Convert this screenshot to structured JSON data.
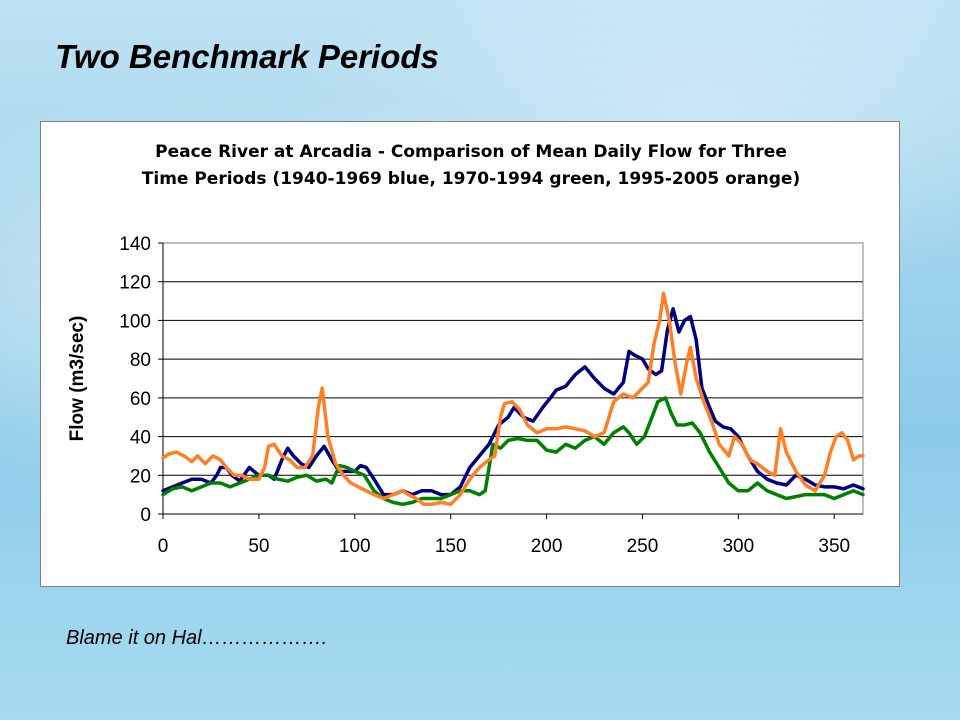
{
  "slide": {
    "title": "Two Benchmark Periods",
    "caption": "Blame it on Hal………………."
  },
  "chart_data": {
    "type": "line",
    "title_lines": [
      "Peace River at Arcadia - Comparison of Mean Daily Flow for Three",
      "Time Periods (1940-1969 blue, 1970-1994 green, 1995-2005 orange)"
    ],
    "xlabel": "",
    "ylabel": "Flow (m3/sec)",
    "xlim": [
      0,
      365
    ],
    "ylim": [
      0,
      140
    ],
    "x_ticks": [
      0,
      50,
      100,
      150,
      200,
      250,
      300,
      350
    ],
    "y_ticks": [
      0,
      20,
      40,
      60,
      80,
      100,
      120,
      140
    ],
    "grid": "horizontal",
    "legend": "none",
    "series": [
      {
        "color": "#000080",
        "points": [
          [
            0,
            12
          ],
          [
            5,
            14
          ],
          [
            10,
            16
          ],
          [
            15,
            18
          ],
          [
            20,
            18
          ],
          [
            25,
            16
          ],
          [
            28,
            20
          ],
          [
            30,
            24
          ],
          [
            33,
            24
          ],
          [
            36,
            20
          ],
          [
            40,
            17
          ],
          [
            45,
            24
          ],
          [
            50,
            20
          ],
          [
            55,
            20
          ],
          [
            58,
            18
          ],
          [
            62,
            28
          ],
          [
            65,
            34
          ],
          [
            68,
            30
          ],
          [
            72,
            26
          ],
          [
            76,
            24
          ],
          [
            80,
            30
          ],
          [
            84,
            35
          ],
          [
            88,
            28
          ],
          [
            92,
            22
          ],
          [
            96,
            22
          ],
          [
            100,
            22
          ],
          [
            103,
            25
          ],
          [
            106,
            24
          ],
          [
            110,
            18
          ],
          [
            115,
            10
          ],
          [
            120,
            10
          ],
          [
            125,
            12
          ],
          [
            130,
            10
          ],
          [
            135,
            12
          ],
          [
            140,
            12
          ],
          [
            145,
            10
          ],
          [
            150,
            10
          ],
          [
            155,
            14
          ],
          [
            160,
            24
          ],
          [
            165,
            30
          ],
          [
            170,
            36
          ],
          [
            175,
            46
          ],
          [
            180,
            50
          ],
          [
            183,
            55
          ],
          [
            188,
            50
          ],
          [
            193,
            48
          ],
          [
            198,
            55
          ],
          [
            202,
            60
          ],
          [
            205,
            64
          ],
          [
            210,
            66
          ],
          [
            215,
            72
          ],
          [
            220,
            76
          ],
          [
            225,
            70
          ],
          [
            230,
            65
          ],
          [
            235,
            62
          ],
          [
            240,
            68
          ],
          [
            243,
            84
          ],
          [
            246,
            82
          ],
          [
            250,
            80
          ],
          [
            253,
            75
          ],
          [
            257,
            72
          ],
          [
            260,
            74
          ],
          [
            263,
            95
          ],
          [
            266,
            106
          ],
          [
            269,
            94
          ],
          [
            272,
            100
          ],
          [
            275,
            102
          ],
          [
            278,
            90
          ],
          [
            281,
            65
          ],
          [
            285,
            55
          ],
          [
            288,
            48
          ],
          [
            292,
            45
          ],
          [
            296,
            44
          ],
          [
            300,
            40
          ],
          [
            305,
            30
          ],
          [
            310,
            22
          ],
          [
            315,
            18
          ],
          [
            320,
            16
          ],
          [
            325,
            15
          ],
          [
            330,
            20
          ],
          [
            335,
            18
          ],
          [
            340,
            15
          ],
          [
            345,
            14
          ],
          [
            350,
            14
          ],
          [
            355,
            13
          ],
          [
            360,
            15
          ],
          [
            365,
            13
          ]
        ]
      },
      {
        "color": "#008000",
        "points": [
          [
            0,
            10
          ],
          [
            5,
            13
          ],
          [
            10,
            14
          ],
          [
            15,
            12
          ],
          [
            20,
            14
          ],
          [
            25,
            16
          ],
          [
            30,
            16
          ],
          [
            35,
            14
          ],
          [
            40,
            16
          ],
          [
            45,
            18
          ],
          [
            50,
            20
          ],
          [
            55,
            20
          ],
          [
            60,
            18
          ],
          [
            65,
            17
          ],
          [
            70,
            19
          ],
          [
            75,
            20
          ],
          [
            80,
            17
          ],
          [
            85,
            18
          ],
          [
            88,
            16
          ],
          [
            92,
            25
          ],
          [
            96,
            24
          ],
          [
            100,
            22
          ],
          [
            105,
            20
          ],
          [
            110,
            12
          ],
          [
            115,
            8
          ],
          [
            120,
            6
          ],
          [
            125,
            5
          ],
          [
            130,
            6
          ],
          [
            135,
            8
          ],
          [
            140,
            8
          ],
          [
            145,
            8
          ],
          [
            150,
            10
          ],
          [
            155,
            12
          ],
          [
            160,
            12
          ],
          [
            165,
            10
          ],
          [
            168,
            12
          ],
          [
            172,
            36
          ],
          [
            176,
            34
          ],
          [
            180,
            38
          ],
          [
            185,
            39
          ],
          [
            190,
            38
          ],
          [
            195,
            38
          ],
          [
            200,
            33
          ],
          [
            205,
            32
          ],
          [
            210,
            36
          ],
          [
            215,
            34
          ],
          [
            220,
            38
          ],
          [
            225,
            40
          ],
          [
            230,
            36
          ],
          [
            235,
            42
          ],
          [
            240,
            45
          ],
          [
            243,
            42
          ],
          [
            247,
            36
          ],
          [
            251,
            40
          ],
          [
            255,
            50
          ],
          [
            258,
            58
          ],
          [
            262,
            60
          ],
          [
            265,
            52
          ],
          [
            268,
            46
          ],
          [
            272,
            46
          ],
          [
            276,
            47
          ],
          [
            280,
            42
          ],
          [
            285,
            32
          ],
          [
            290,
            24
          ],
          [
            295,
            16
          ],
          [
            300,
            12
          ],
          [
            305,
            12
          ],
          [
            310,
            16
          ],
          [
            315,
            12
          ],
          [
            320,
            10
          ],
          [
            325,
            8
          ],
          [
            330,
            9
          ],
          [
            335,
            10
          ],
          [
            340,
            10
          ],
          [
            345,
            10
          ],
          [
            350,
            8
          ],
          [
            355,
            10
          ],
          [
            360,
            12
          ],
          [
            365,
            10
          ]
        ]
      },
      {
        "color": "#ff7f27",
        "points": [
          [
            0,
            29
          ],
          [
            3,
            31
          ],
          [
            7,
            32
          ],
          [
            11,
            30
          ],
          [
            15,
            27
          ],
          [
            18,
            30
          ],
          [
            22,
            26
          ],
          [
            26,
            30
          ],
          [
            30,
            28
          ],
          [
            33,
            24
          ],
          [
            37,
            20
          ],
          [
            41,
            20
          ],
          [
            45,
            18
          ],
          [
            50,
            18
          ],
          [
            53,
            24
          ],
          [
            55,
            35
          ],
          [
            58,
            36
          ],
          [
            62,
            30
          ],
          [
            66,
            28
          ],
          [
            70,
            24
          ],
          [
            74,
            24
          ],
          [
            78,
            30
          ],
          [
            81,
            55
          ],
          [
            83,
            65
          ],
          [
            86,
            40
          ],
          [
            90,
            26
          ],
          [
            94,
            20
          ],
          [
            98,
            16
          ],
          [
            102,
            14
          ],
          [
            106,
            12
          ],
          [
            110,
            10
          ],
          [
            115,
            8
          ],
          [
            120,
            10
          ],
          [
            125,
            12
          ],
          [
            128,
            10
          ],
          [
            132,
            8
          ],
          [
            136,
            5
          ],
          [
            140,
            5
          ],
          [
            145,
            6
          ],
          [
            150,
            5
          ],
          [
            155,
            10
          ],
          [
            160,
            18
          ],
          [
            165,
            24
          ],
          [
            170,
            28
          ],
          [
            173,
            30
          ],
          [
            176,
            50
          ],
          [
            178,
            57
          ],
          [
            182,
            58
          ],
          [
            186,
            54
          ],
          [
            190,
            46
          ],
          [
            195,
            42
          ],
          [
            200,
            44
          ],
          [
            205,
            44
          ],
          [
            210,
            45
          ],
          [
            215,
            44
          ],
          [
            220,
            43
          ],
          [
            225,
            40
          ],
          [
            230,
            42
          ],
          [
            235,
            58
          ],
          [
            240,
            62
          ],
          [
            245,
            60
          ],
          [
            249,
            64
          ],
          [
            253,
            68
          ],
          [
            256,
            88
          ],
          [
            259,
            100
          ],
          [
            261,
            114
          ],
          [
            264,
            100
          ],
          [
            267,
            78
          ],
          [
            270,
            62
          ],
          [
            273,
            78
          ],
          [
            275,
            86
          ],
          [
            278,
            70
          ],
          [
            282,
            58
          ],
          [
            286,
            48
          ],
          [
            290,
            36
          ],
          [
            295,
            30
          ],
          [
            298,
            40
          ],
          [
            302,
            36
          ],
          [
            306,
            28
          ],
          [
            310,
            26
          ],
          [
            315,
            22
          ],
          [
            319,
            20
          ],
          [
            322,
            44
          ],
          [
            325,
            32
          ],
          [
            330,
            22
          ],
          [
            335,
            15
          ],
          [
            340,
            12
          ],
          [
            345,
            20
          ],
          [
            348,
            32
          ],
          [
            351,
            40
          ],
          [
            354,
            42
          ],
          [
            357,
            38
          ],
          [
            360,
            28
          ],
          [
            363,
            30
          ],
          [
            365,
            30
          ]
        ]
      }
    ]
  }
}
